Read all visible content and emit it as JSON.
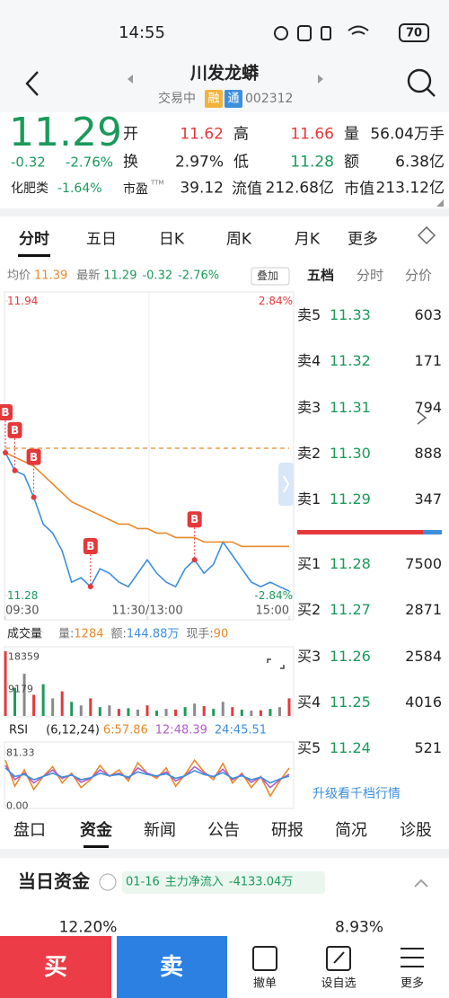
{
  "status_bar": {
    "time": "14:55",
    "battery": "70"
  },
  "header": {
    "title": "川发龙蟒",
    "status": "交易中",
    "tag_margin": "融",
    "tag_connect": "通",
    "code": "002312"
  },
  "quote": {
    "price": "11.29",
    "change": "-0.32",
    "change_pct": "-2.76%",
    "open_label": "开",
    "open": "11.62",
    "high_label": "高",
    "high": "11.66",
    "volume_label": "量",
    "volume": "56.04万手",
    "turnover_label": "换",
    "turnover": "2.97%",
    "low_label": "低",
    "low": "11.28",
    "amount_label": "额",
    "amount": "6.38亿",
    "sector": "化肥类",
    "sector_change": "-1.64%",
    "pe_label": "市盈",
    "pe_suffix": "TTM",
    "pe": "39.12",
    "float_cap_label": "流值",
    "float_cap": "212.68亿",
    "market_cap_label": "市值",
    "market_cap": "213.12亿"
  },
  "chart_tabs": [
    "分时",
    "五日",
    "日K",
    "周K",
    "月K",
    "更多"
  ],
  "legend_row": {
    "avg_label": "均价",
    "avg": "11.39",
    "latest_label": "最新",
    "latest": "11.29",
    "change": "-0.32",
    "change_pct": "-2.76%",
    "overlay": "叠加"
  },
  "side_tabs": [
    "五档",
    "分时",
    "分价"
  ],
  "intraday": {
    "type": "line",
    "x": [
      0,
      8,
      16,
      24,
      32,
      40,
      48,
      56,
      64,
      72,
      80,
      88,
      96,
      104,
      112,
      120,
      128,
      136,
      144,
      152,
      160,
      168,
      176,
      184,
      192,
      200,
      208,
      216,
      224,
      232,
      240
    ],
    "series": [
      {
        "color": "#3d8fdc",
        "values": [
          11.6,
          11.56,
          11.55,
          11.5,
          11.44,
          11.42,
          11.38,
          11.31,
          11.32,
          11.3,
          11.34,
          11.33,
          11.31,
          11.3,
          11.33,
          11.36,
          11.33,
          11.31,
          11.3,
          11.34,
          11.36,
          11.33,
          11.35,
          11.4,
          11.37,
          11.34,
          11.31,
          11.3,
          11.31,
          11.3,
          11.29
        ]
      },
      {
        "color": "#e8892a",
        "values": [
          11.6,
          11.59,
          11.58,
          11.57,
          11.55,
          11.53,
          11.51,
          11.49,
          11.48,
          11.47,
          11.46,
          11.45,
          11.44,
          11.44,
          11.43,
          11.43,
          11.42,
          11.42,
          11.41,
          11.41,
          11.41,
          11.4,
          11.4,
          11.4,
          11.4,
          11.39,
          11.39,
          11.39,
          11.39,
          11.39,
          11.39
        ]
      }
    ],
    "prev_close": 11.61,
    "xlim": [
      0,
      240
    ],
    "xticks": [
      {
        "value": 0,
        "label": "09:30"
      },
      {
        "value": 120,
        "label": "11:30/13:00"
      },
      {
        "value": 240,
        "label": "15:00"
      }
    ],
    "ylim": [
      11.28,
      11.94
    ],
    "yticks": [
      11.94,
      11.28
    ],
    "y2lim": [
      -2.84,
      2.84
    ],
    "y2ticks": [
      {
        "value": 2.84,
        "label": "2.84%"
      },
      {
        "value": -2.84,
        "label": "-2.84%"
      }
    ],
    "signals": {
      "label": "B",
      "x": [
        0,
        8,
        24,
        72,
        160
      ]
    }
  },
  "volume_row": {
    "label": "成交量",
    "volume_label": "量:",
    "volume": "1284",
    "amount_label": "额:",
    "amount": "144.88万",
    "hand_label": "现手:",
    "hand": "90"
  },
  "volume": {
    "type": "bar",
    "color": "#8a8a8a",
    "values": [
      18359,
      8000,
      12000,
      6000,
      9000,
      5000,
      7000,
      4000,
      3000,
      5000,
      2500,
      3000,
      2000,
      2200,
      1800,
      3000,
      1500,
      2000,
      1800,
      2500,
      3500,
      2800,
      2000,
      4000,
      2500,
      1800,
      1500,
      1600,
      2000,
      2500,
      5000
    ],
    "ylim": [
      0,
      18359
    ],
    "yticks": [
      18359,
      9179
    ]
  },
  "rsi_row": {
    "label": "RSI",
    "params": "(6,12,24)",
    "rsi6_label": "6:",
    "rsi6": "57.86",
    "rsi12_label": "12:",
    "rsi12": "48.39",
    "rsi24_label": "24:",
    "rsi24": "45.51"
  },
  "rsi": {
    "type": "line",
    "ylim": [
      0,
      81.33
    ],
    "yticks": [
      81.33,
      {
        "value": 0,
        "label": "0.00"
      }
    ],
    "series": [
      {
        "color": "#e8892a",
        "values": [
          70,
          30,
          55,
          25,
          45,
          60,
          35,
          50,
          28,
          40,
          62,
          45,
          55,
          38,
          66,
          50,
          42,
          58,
          30,
          48,
          70,
          52,
          40,
          65,
          35,
          50,
          28,
          45,
          15,
          38,
          57.86
        ]
      },
      {
        "color": "#b05cc8",
        "values": [
          62,
          40,
          50,
          35,
          45,
          55,
          42,
          48,
          36,
          42,
          55,
          46,
          50,
          42,
          58,
          50,
          45,
          52,
          38,
          46,
          60,
          50,
          44,
          56,
          40,
          48,
          36,
          44,
          28,
          40,
          48.39
        ]
      },
      {
        "color": "#3d8fdc",
        "values": [
          58,
          45,
          48,
          40,
          45,
          50,
          44,
          47,
          40,
          43,
          50,
          46,
          48,
          44,
          52,
          48,
          46,
          49,
          42,
          46,
          54,
          48,
          45,
          51,
          42,
          46,
          40,
          44,
          35,
          41,
          45.51
        ]
      }
    ]
  },
  "order_book": {
    "asks": [
      {
        "label": "卖5",
        "price": "11.33",
        "volume": "603"
      },
      {
        "label": "卖4",
        "price": "11.32",
        "volume": "171"
      },
      {
        "label": "卖3",
        "price": "11.31",
        "volume": "794"
      },
      {
        "label": "卖2",
        "price": "11.30",
        "volume": "888"
      },
      {
        "label": "卖1",
        "price": "11.29",
        "volume": "347"
      }
    ],
    "bids": [
      {
        "label": "买1",
        "price": "11.28",
        "volume": "7500"
      },
      {
        "label": "买2",
        "price": "11.27",
        "volume": "2871"
      },
      {
        "label": "买3",
        "price": "11.26",
        "volume": "2584"
      },
      {
        "label": "买4",
        "price": "11.25",
        "volume": "4016"
      },
      {
        "label": "买5",
        "price": "11.24",
        "volume": "521"
      }
    ],
    "more": "升级看千档行情"
  },
  "bottom_tabs": [
    "盘口",
    "资金",
    "新闻",
    "公告",
    "研报",
    "简况",
    "诊股"
  ],
  "fund": {
    "title": "当日资金",
    "date": "01-16",
    "flow_label": "主力净流入",
    "flow": "-4133.04万",
    "left_pct": "12.20%",
    "right_pct": "8.93%"
  },
  "action_bar": {
    "buy": "买",
    "sell": "卖",
    "cancel": "撤单",
    "watch": "设自选",
    "more": "更多"
  }
}
